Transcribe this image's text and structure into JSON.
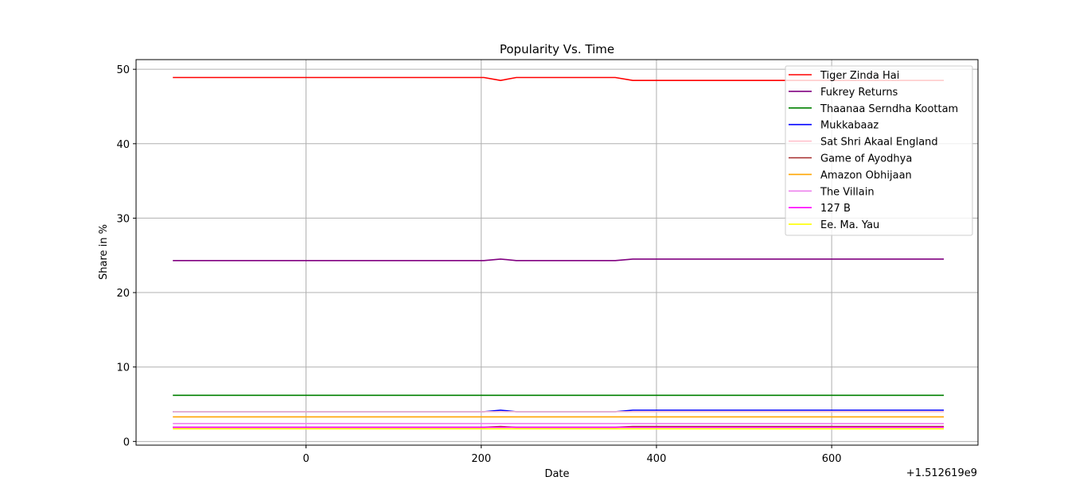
{
  "chart_data": {
    "type": "line",
    "title": "Popularity Vs. Time",
    "xlabel": "Date",
    "ylabel": "Share in %",
    "x_offset_label": "+1.512619e9",
    "xlim": [
      -194,
      767
    ],
    "ylim": [
      -0.5,
      51.3
    ],
    "x_ticks": [
      0,
      200,
      400,
      600
    ],
    "y_ticks": [
      0,
      10,
      20,
      30,
      40,
      50
    ],
    "grid": true,
    "legend_position": "top-right",
    "x": [
      -152,
      203,
      222,
      240,
      353,
      373,
      728
    ],
    "series": [
      {
        "name": "Tiger Zinda Hai",
        "color": "#ff0000",
        "values": [
          48.9,
          48.9,
          48.5,
          48.9,
          48.9,
          48.5,
          48.5
        ]
      },
      {
        "name": "Fukrey Returns",
        "color": "#800080",
        "values": [
          24.3,
          24.3,
          24.5,
          24.3,
          24.3,
          24.5,
          24.5
        ]
      },
      {
        "name": "Thaanaa Serndha Koottam",
        "color": "#008000",
        "values": [
          6.2,
          6.2,
          6.2,
          6.2,
          6.2,
          6.2,
          6.2
        ]
      },
      {
        "name": "Mukkabaaz",
        "color": "#0000ff",
        "values": [
          4.0,
          4.0,
          4.2,
          4.0,
          4.0,
          4.2,
          4.2
        ]
      },
      {
        "name": "Sat Shri Akaal England",
        "color": "#ffc0cb",
        "values": [
          4.0,
          4.0,
          4.0,
          4.0,
          4.0,
          4.0,
          4.0
        ]
      },
      {
        "name": "Game of Ayodhya",
        "color": "#a52a2a",
        "values": [
          1.9,
          1.9,
          2.0,
          1.9,
          1.9,
          2.0,
          2.0
        ]
      },
      {
        "name": "Amazon Obhijaan",
        "color": "#ffa500",
        "values": [
          3.3,
          3.3,
          3.3,
          3.3,
          3.3,
          3.3,
          3.3
        ]
      },
      {
        "name": "The Villain",
        "color": "#ee82ee",
        "values": [
          2.4,
          2.4,
          2.4,
          2.4,
          2.4,
          2.4,
          2.4
        ]
      },
      {
        "name": "127 B",
        "color": "#ff00ff",
        "values": [
          1.9,
          1.9,
          1.9,
          1.9,
          1.9,
          1.9,
          1.9
        ]
      },
      {
        "name": "Ee. Ma. Yau",
        "color": "#ffff00",
        "values": [
          1.7,
          1.7,
          1.7,
          1.7,
          1.7,
          1.7,
          1.7
        ]
      }
    ]
  }
}
